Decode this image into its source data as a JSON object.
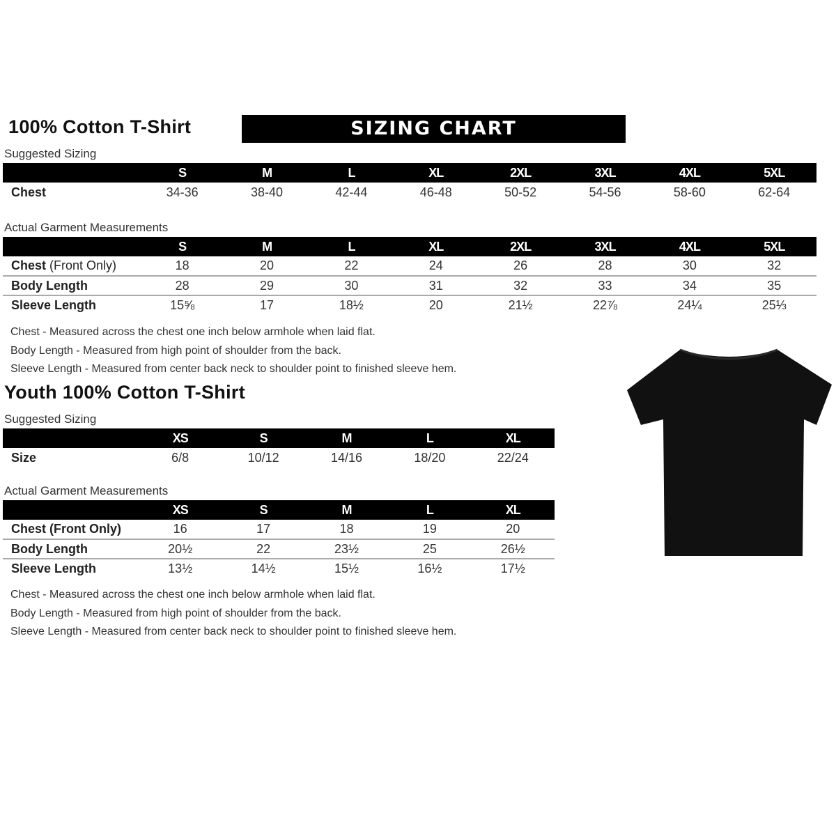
{
  "adult": {
    "title": "100% Cotton T-Shirt",
    "banner": "SIZING CHART",
    "suggested_label": "Suggested Sizing",
    "sizes": [
      "S",
      "M",
      "L",
      "XL",
      "2XL",
      "3XL",
      "4XL",
      "5XL"
    ],
    "suggested_rows": [
      {
        "label": "Chest",
        "values": [
          "34-36",
          "38-40",
          "42-44",
          "46-48",
          "50-52",
          "54-56",
          "58-60",
          "62-64"
        ]
      }
    ],
    "actual_label": "Actual Garment Measurements",
    "actual_rows": [
      {
        "label": "Chest",
        "label_suffix": " (Front Only)",
        "values": [
          "18",
          "20",
          "22",
          "24",
          "26",
          "28",
          "30",
          "32"
        ]
      },
      {
        "label": "Body Length",
        "label_suffix": "",
        "values": [
          "28",
          "29",
          "30",
          "31",
          "32",
          "33",
          "34",
          "35"
        ]
      },
      {
        "label": "Sleeve Length",
        "label_suffix": "",
        "values": [
          "15⅝",
          "17",
          "18½",
          "20",
          "21½",
          "22⅞",
          "24¼",
          "25⅓"
        ]
      }
    ],
    "notes": [
      "Chest - Measured across the chest one inch below armhole when laid flat.",
      "Body Length - Measured from high point of shoulder from the back.",
      "Sleeve Length - Measured from center back neck to shoulder point to finished sleeve hem."
    ]
  },
  "youth": {
    "title": "Youth 100% Cotton T-Shirt",
    "suggested_label": "Suggested Sizing",
    "sizes": [
      "XS",
      "S",
      "M",
      "L",
      "XL"
    ],
    "suggested_rows": [
      {
        "label": "Size",
        "values": [
          "6/8",
          "10/12",
          "14/16",
          "18/20",
          "22/24"
        ]
      }
    ],
    "actual_label": "Actual Garment Measurements",
    "actual_rows": [
      {
        "label": "Chest (Front Only)",
        "label_suffix": "",
        "values": [
          "16",
          "17",
          "18",
          "19",
          "20"
        ]
      },
      {
        "label": "Body Length",
        "label_suffix": "",
        "values": [
          "20½",
          "22",
          "23½",
          "25",
          "26½"
        ]
      },
      {
        "label": "Sleeve Length",
        "label_suffix": "",
        "values": [
          "13½",
          "14½",
          "15½",
          "16½",
          "17½"
        ]
      }
    ],
    "notes": [
      "Chest - Measured across the chest one inch below armhole when laid flat.",
      "Body Length - Measured from high point of shoulder from the back.",
      "Sleeve Length - Measured from center back neck to shoulder point to finished sleeve hem."
    ]
  },
  "image": {
    "icon": "black-tshirt",
    "color": "#111111"
  }
}
